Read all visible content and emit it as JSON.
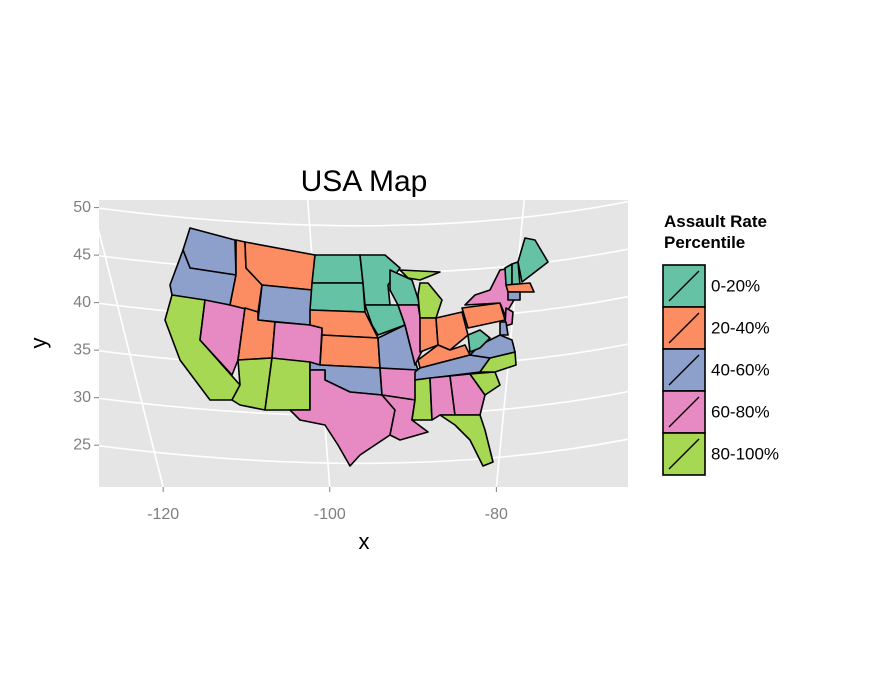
{
  "chart_data": {
    "type": "map",
    "title": "USA Map",
    "x_label": "x",
    "y_label": "y",
    "xlim": [
      -127.7,
      -64.2
    ],
    "ylim": [
      20.6,
      50.8
    ],
    "xticks": [
      -120,
      -100,
      -80
    ],
    "yticks": [
      25,
      30,
      35,
      40,
      45,
      50
    ],
    "grid": true,
    "legend": {
      "title": "Assault Rate Percentile",
      "position": "right",
      "items": [
        {
          "label": "0-20%",
          "color": "#66c2a5"
        },
        {
          "label": "20-40%",
          "color": "#fc8d62"
        },
        {
          "label": "40-60%",
          "color": "#8da0cb"
        },
        {
          "label": "60-80%",
          "color": "#e78ac3"
        },
        {
          "label": "80-100%",
          "color": "#a6d854"
        }
      ]
    }
  }
}
